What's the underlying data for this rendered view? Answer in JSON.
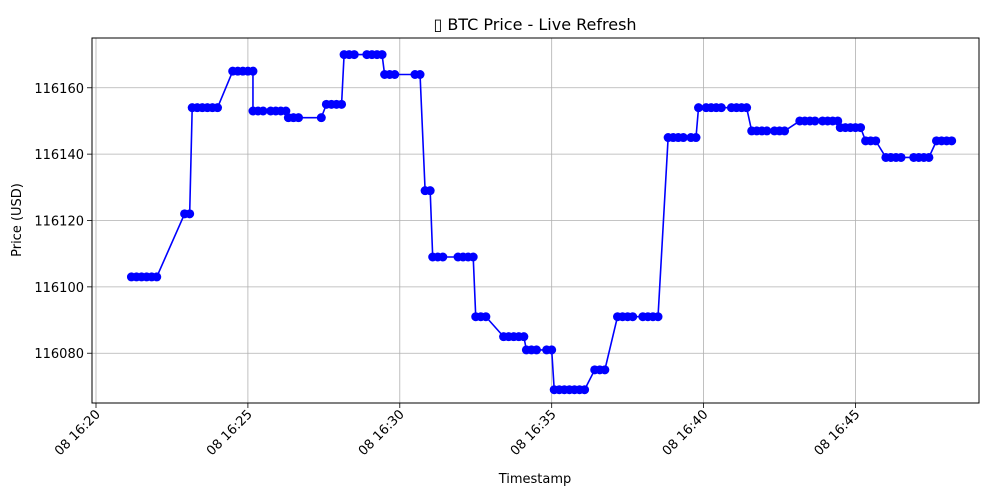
{
  "chart_data": {
    "type": "line",
    "title": "▯ BTC Price - Live Refresh",
    "xlabel": "Timestamp",
    "ylabel": "Price (USD)",
    "x_tick_labels": [
      "08 16:20",
      "08 16:25",
      "08 16:30",
      "08 16:35",
      "08 16:40",
      "08 16:45"
    ],
    "y_tick_labels": [
      "116080",
      "116100",
      "116120",
      "116140",
      "116160"
    ],
    "ylim": [
      116065,
      116175
    ],
    "xlim": [
      "08 16:20",
      "08 16:49"
    ],
    "grid": true,
    "line_color": "#0000ff",
    "marker_color": "#0000ff",
    "series": [
      {
        "x": [
          "16:21:10",
          "16:21:20",
          "16:21:30",
          "16:21:40",
          "16:21:50",
          "16:22:00",
          "16:22:55",
          "16:23:05",
          "16:23:10",
          "16:23:20",
          "16:23:30",
          "16:23:40",
          "16:23:50",
          "16:24:00",
          "16:24:30",
          "16:24:40",
          "16:24:50",
          "16:25:00",
          "16:25:10",
          "16:25:10",
          "16:25:20",
          "16:25:30",
          "16:25:45",
          "16:25:55",
          "16:26:05",
          "16:26:15",
          "16:26:20",
          "16:26:30",
          "16:26:40",
          "16:27:25",
          "16:27:35",
          "16:27:45",
          "16:27:55",
          "16:28:05",
          "16:28:10",
          "16:28:20",
          "16:28:30",
          "16:28:55",
          "16:29:05",
          "16:29:15",
          "16:29:25",
          "16:29:30",
          "16:29:40",
          "16:29:50",
          "16:30:30",
          "16:30:40",
          "16:30:50",
          "16:31:00",
          "16:31:05",
          "16:31:15",
          "16:31:25",
          "16:31:55",
          "16:32:05",
          "16:32:15",
          "16:32:25",
          "16:32:30",
          "16:32:40",
          "16:32:50",
          "16:33:25",
          "16:33:35",
          "16:33:45",
          "16:33:55",
          "16:34:05",
          "16:34:10",
          "16:34:20",
          "16:34:30",
          "16:34:50",
          "16:35:00",
          "16:35:05",
          "16:35:15",
          "16:35:25",
          "16:35:35",
          "16:35:45",
          "16:35:55",
          "16:36:05",
          "16:36:25",
          "16:36:35",
          "16:36:45",
          "16:37:10",
          "16:37:20",
          "16:37:30",
          "16:37:40",
          "16:38:00",
          "16:38:10",
          "16:38:20",
          "16:38:30",
          "16:38:50",
          "16:39:00",
          "16:39:10",
          "16:39:20",
          "16:39:35",
          "16:39:45",
          "16:39:50",
          "16:40:05",
          "16:40:15",
          "16:40:25",
          "16:40:35",
          "16:40:55",
          "16:41:05",
          "16:41:15",
          "16:41:25",
          "16:41:35",
          "16:41:45",
          "16:41:55",
          "16:42:05",
          "16:42:20",
          "16:42:30",
          "16:42:40",
          "16:43:10",
          "16:43:20",
          "16:43:30",
          "16:43:40",
          "16:43:55",
          "16:44:05",
          "16:44:15",
          "16:44:25",
          "16:44:30",
          "16:44:40",
          "16:44:50",
          "16:45:00",
          "16:45:10",
          "16:45:20",
          "16:45:30",
          "16:45:40",
          "16:46:00",
          "16:46:10",
          "16:46:20",
          "16:46:30",
          "16:46:55",
          "16:47:05",
          "16:47:15",
          "16:47:25",
          "16:47:40",
          "16:47:50",
          "16:48:00",
          "16:48:10"
        ],
        "values": [
          116103,
          116103,
          116103,
          116103,
          116103,
          116103,
          116122,
          116122,
          116154,
          116154,
          116154,
          116154,
          116154,
          116154,
          116165,
          116165,
          116165,
          116165,
          116165,
          116153,
          116153,
          116153,
          116153,
          116153,
          116153,
          116153,
          116151,
          116151,
          116151,
          116151,
          116155,
          116155,
          116155,
          116155,
          116170,
          116170,
          116170,
          116170,
          116170,
          116170,
          116170,
          116164,
          116164,
          116164,
          116164,
          116164,
          116129,
          116129,
          116109,
          116109,
          116109,
          116109,
          116109,
          116109,
          116109,
          116091,
          116091,
          116091,
          116085,
          116085,
          116085,
          116085,
          116085,
          116081,
          116081,
          116081,
          116081,
          116081,
          116069,
          116069,
          116069,
          116069,
          116069,
          116069,
          116069,
          116075,
          116075,
          116075,
          116091,
          116091,
          116091,
          116091,
          116091,
          116091,
          116091,
          116091,
          116145,
          116145,
          116145,
          116145,
          116145,
          116145,
          116154,
          116154,
          116154,
          116154,
          116154,
          116154,
          116154,
          116154,
          116154,
          116147,
          116147,
          116147,
          116147,
          116147,
          116147,
          116147,
          116150,
          116150,
          116150,
          116150,
          116150,
          116150,
          116150,
          116150,
          116148,
          116148,
          116148,
          116148,
          116148,
          116144,
          116144,
          116144,
          116139,
          116139,
          116139,
          116139,
          116139,
          116139,
          116139,
          116139,
          116144,
          116144,
          116144,
          116144
        ]
      }
    ]
  }
}
